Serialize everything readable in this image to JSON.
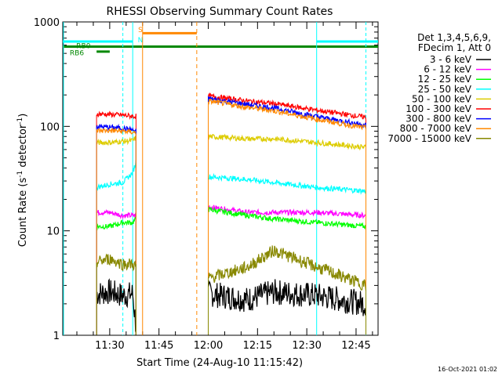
{
  "chart_data": {
    "type": "line",
    "title": "RHESSI Observing Summary Count Rates",
    "xlabel": "Start Time (24-Aug-10 11:15:42)",
    "ylabel_main": "Count Rate (s",
    "ylabel_sup1": "-1",
    "ylabel_mid": " detector",
    "ylabel_sup2": "-1",
    "ylabel_end": ")",
    "yscale": "log",
    "ylim": [
      1,
      1000
    ],
    "xlim": [
      "11:15:42",
      "12:51:42"
    ],
    "x_tick_labels": [
      "11:30",
      "11:45",
      "12:00",
      "12:15",
      "12:30",
      "12:45"
    ],
    "y_tick_labels": [
      "1",
      "10",
      "100",
      "1000"
    ],
    "stamp": "16-Oct-2021 01:02",
    "legend": {
      "header": [
        "Det 1,3,4,5,6,9,",
        "FDecim 1, Att 0"
      ],
      "placement": "right"
    },
    "segment_labels": {
      "saa": "S",
      "night": "N",
      "rbd": "RB0",
      "rb6": "RB6"
    },
    "gaps": [
      [
        "11:38:00",
        "11:56:30"
      ],
      [
        "12:48:00",
        "12:51:42"
      ]
    ],
    "series": [
      {
        "name": "3 - 6 keV",
        "color": "#000000",
        "values_1": [
          2.5,
          2.6,
          2.4,
          2.5,
          1.2
        ],
        "values_2": [
          2.5,
          2.2,
          2.6,
          2.4,
          2.0
        ]
      },
      {
        "name": "6 - 12 keV",
        "color": "#ff00ff",
        "values_1": [
          15,
          15,
          14,
          14,
          14
        ],
        "values_2": [
          17,
          15,
          15,
          15,
          14
        ]
      },
      {
        "name": "12 - 25 keV",
        "color": "#00ff00",
        "values_1": [
          11,
          11,
          12,
          12,
          13
        ],
        "values_2": [
          16,
          14,
          13,
          12,
          11
        ]
      },
      {
        "name": "25 - 50 keV",
        "color": "#00ffff",
        "values_1": [
          26,
          28,
          29,
          36,
          46
        ],
        "values_2": [
          33,
          31,
          29,
          26,
          24
        ]
      },
      {
        "name": "50 - 100 keV",
        "color": "#ddcc00",
        "values_1": [
          70,
          70,
          72,
          73,
          78
        ],
        "values_2": [
          80,
          76,
          76,
          70,
          63
        ]
      },
      {
        "name": "100 - 300 keV",
        "color": "#ff0000",
        "values_1": [
          132,
          130,
          128,
          125,
          125
        ],
        "values_2": [
          195,
          175,
          165,
          143,
          122
        ]
      },
      {
        "name": "300 - 800 keV",
        "color": "#0000ff",
        "values_1": [
          100,
          98,
          96,
          92,
          90
        ],
        "values_2": [
          185,
          162,
          150,
          124,
          103
        ]
      },
      {
        "name": "800 - 7000 keV",
        "color": "#ff8800",
        "values_1": [
          91,
          91,
          90,
          88,
          86
        ],
        "values_2": [
          175,
          152,
          141,
          117,
          96
        ]
      },
      {
        "name": "7000 - 15000 keV",
        "color": "#888800",
        "values_1": [
          5.0,
          5.4,
          4.8,
          4.8,
          4.5
        ],
        "values_2": [
          3.5,
          4.5,
          6.5,
          4.5,
          3.0
        ]
      }
    ],
    "x_1": [
      "11:26:00",
      "11:30:00",
      "11:34:00",
      "11:37:00",
      "11:38:00"
    ],
    "x_2": [
      "12:00:00",
      "12:12:00",
      "12:20:00",
      "12:33:00",
      "12:48:00"
    ]
  }
}
